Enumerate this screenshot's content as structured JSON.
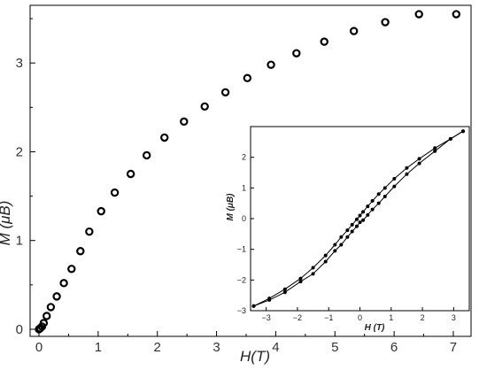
{
  "chart_data": [
    {
      "type": "scatter",
      "title": "",
      "xlabel": "H(T)",
      "ylabel": "M (μB)",
      "xlim": [
        -0.15,
        7.3
      ],
      "ylim": [
        -0.08,
        3.65
      ],
      "x_ticks": [
        0,
        1,
        2,
        3,
        4,
        5,
        6,
        7
      ],
      "y_ticks": [
        0,
        1,
        2,
        3
      ],
      "grid": false,
      "marker": "open-circle",
      "series": [
        {
          "x": [
            0.0,
            0.02,
            0.05,
            0.08,
            0.13,
            0.2,
            0.3,
            0.42,
            0.55,
            0.7,
            0.85,
            1.05,
            1.28,
            1.55,
            1.82,
            2.12,
            2.45,
            2.8,
            3.15,
            3.52,
            3.92,
            4.35,
            4.82,
            5.32,
            5.85,
            6.42,
            7.05
          ],
          "y": [
            0.0,
            0.01,
            0.03,
            0.07,
            0.15,
            0.25,
            0.37,
            0.52,
            0.68,
            0.88,
            1.1,
            1.33,
            1.54,
            1.75,
            1.96,
            2.16,
            2.34,
            2.51,
            2.67,
            2.83,
            2.98,
            3.11,
            3.24,
            3.36,
            3.46,
            3.55,
            3.55
          ]
        }
      ]
    },
    {
      "type": "line",
      "title": "",
      "xlabel": "H (T)",
      "ylabel": "M (μB)",
      "xlim": [
        -3.5,
        3.5
      ],
      "ylim": [
        -3,
        3
      ],
      "x_ticks": [
        -3,
        -2,
        -1,
        0,
        1,
        2,
        3
      ],
      "y_ticks": [
        -3,
        -2,
        -1,
        0,
        1,
        2
      ],
      "grid": false,
      "marker": "filled-circle",
      "series": [
        {
          "x": [
            -3.4,
            -2.9,
            -2.4,
            -1.9,
            -1.5,
            -1.1,
            -0.8,
            -0.6,
            -0.4,
            -0.25,
            -0.1,
            0.0,
            0.1,
            0.25,
            0.4,
            0.6,
            0.8,
            1.1,
            1.5,
            1.9,
            2.4,
            2.9,
            3.3
          ],
          "y": [
            -2.85,
            -2.6,
            -2.3,
            -1.95,
            -1.6,
            -1.2,
            -0.85,
            -0.6,
            -0.38,
            -0.2,
            -0.02,
            0.1,
            0.22,
            0.4,
            0.58,
            0.8,
            1.0,
            1.3,
            1.65,
            1.95,
            2.3,
            2.6,
            2.85
          ]
        },
        {
          "x": [
            3.3,
            2.9,
            2.4,
            1.9,
            1.5,
            1.1,
            0.8,
            0.6,
            0.4,
            0.25,
            0.1,
            0.0,
            -0.1,
            -0.25,
            -0.4,
            -0.6,
            -0.8,
            -1.1,
            -1.5,
            -1.9,
            -2.4,
            -2.9,
            -3.4
          ],
          "y": [
            2.85,
            2.6,
            2.2,
            1.8,
            1.45,
            1.05,
            0.72,
            0.5,
            0.3,
            0.12,
            -0.05,
            -0.12,
            -0.25,
            -0.42,
            -0.6,
            -0.85,
            -1.05,
            -1.4,
            -1.8,
            -2.05,
            -2.4,
            -2.65,
            -2.85
          ]
        }
      ]
    }
  ]
}
